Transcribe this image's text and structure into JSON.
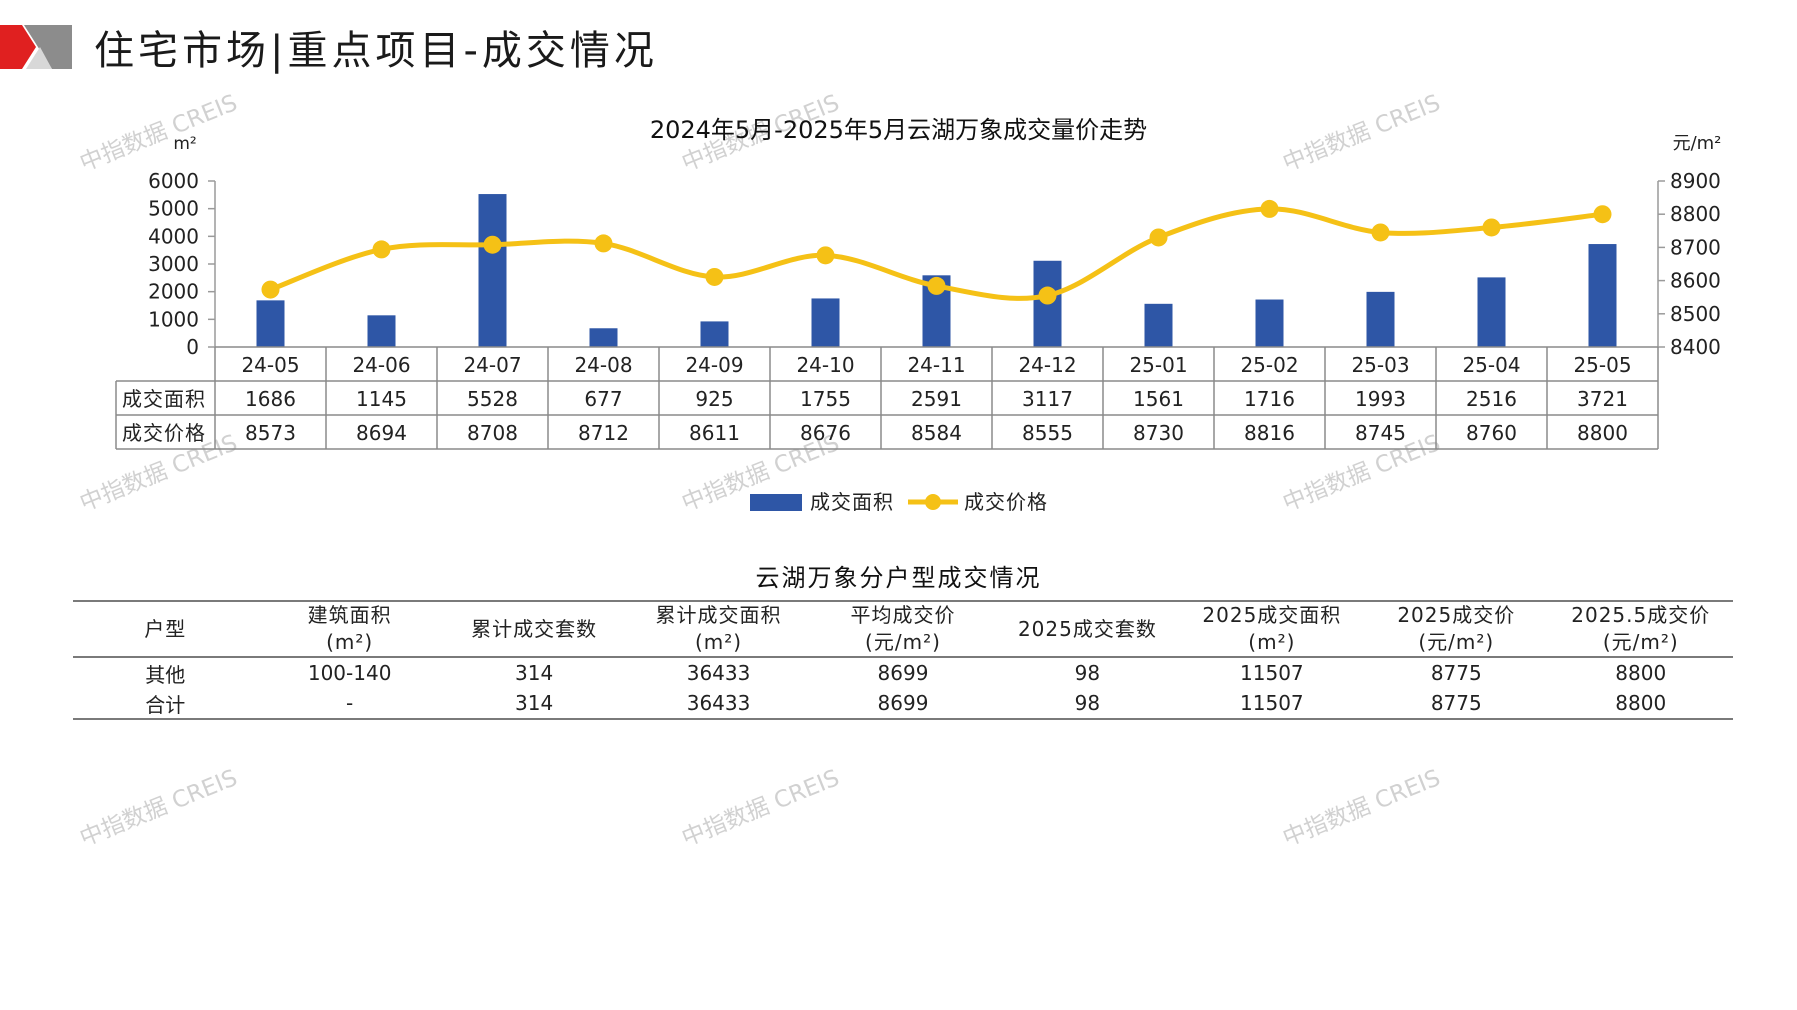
{
  "header": {
    "title": "住宅市场|重点项目-成交情况"
  },
  "watermark_text": "中指数据 CREIS",
  "colors": {
    "bar": "#2E56A6",
    "line": "#F5C116",
    "logo_red": "#E02020",
    "logo_gray": "#8C8C8C"
  },
  "chart_data": {
    "type": "bar+line",
    "title": "2024年5月-2025年5月云湖万象成交量价走势",
    "categories": [
      "24-05",
      "24-06",
      "24-07",
      "24-08",
      "24-09",
      "24-10",
      "24-11",
      "24-12",
      "25-01",
      "25-02",
      "25-03",
      "25-04",
      "25-05"
    ],
    "series": [
      {
        "name": "成交面积",
        "type": "bar",
        "axis": "left",
        "values": [
          1686,
          1145,
          5528,
          677,
          925,
          1755,
          2591,
          3117,
          1561,
          1716,
          1993,
          2516,
          3721
        ]
      },
      {
        "name": "成交价格",
        "type": "line",
        "axis": "right",
        "values": [
          8573,
          8694,
          8708,
          8712,
          8611,
          8676,
          8584,
          8555,
          8730,
          8816,
          8745,
          8760,
          8800
        ]
      }
    ],
    "left_axis": {
      "unit": "m²",
      "ylim": [
        0,
        6000
      ],
      "ticks": [
        "0",
        "1000",
        "2000",
        "3000",
        "4000",
        "5000",
        "6000"
      ]
    },
    "right_axis": {
      "unit": "元/m²",
      "ylim": [
        8400,
        8900
      ],
      "ticks": [
        "8400",
        "8500",
        "8600",
        "8700",
        "8800",
        "8900"
      ]
    },
    "legend_position": "bottom"
  },
  "table": {
    "title": "云湖万象分户型成交情况",
    "columns": [
      [
        "户型"
      ],
      [
        "建筑面积",
        "(m²)"
      ],
      [
        "累计成交套数"
      ],
      [
        "累计成交面积",
        "(m²)"
      ],
      [
        "平均成交价",
        "(元/m²)"
      ],
      [
        "2025成交套数"
      ],
      [
        "2025成交面积",
        "(m²)"
      ],
      [
        "2025成交价",
        "(元/m²)"
      ],
      [
        "2025.5成交价",
        "(元/m²)"
      ]
    ],
    "rows": [
      [
        "其他",
        "100-140",
        "314",
        "36433",
        "8699",
        "98",
        "11507",
        "8775",
        "8800"
      ],
      [
        "合计",
        "-",
        "314",
        "36433",
        "8699",
        "98",
        "11507",
        "8775",
        "8800"
      ]
    ]
  }
}
